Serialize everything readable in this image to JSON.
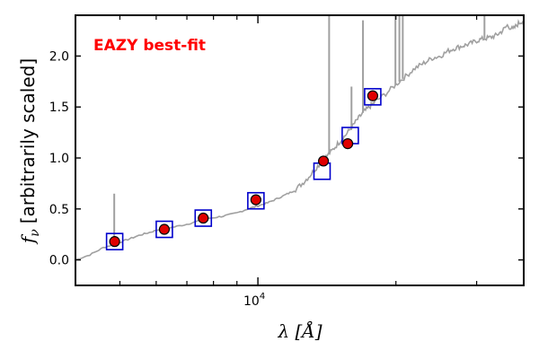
{
  "chart_data": {
    "type": "scatter",
    "annotation": "EAZY best-fit",
    "annotation_color": "#ff0000",
    "xlabel": "λ [Å]",
    "ylabel": "f_ν [arbitrarily scaled]",
    "ylabel_symbol": "f",
    "ylabel_sub": "ν",
    "ylabel_text": "[arbitrarily scaled]",
    "x_scale": "log",
    "xlim": [
      4000,
      38000
    ],
    "ylim": [
      -0.25,
      2.4
    ],
    "yticks": [
      0.0,
      0.5,
      1.0,
      1.5,
      2.0
    ],
    "ytick_labels": [
      "0.0",
      "0.5",
      "1.0",
      "1.5",
      "2.0"
    ],
    "xtick_major": [
      {
        "value": 10000,
        "base": "10",
        "exp": "4"
      }
    ],
    "xtick_minor": [
      5000,
      6000,
      7000,
      8000,
      9000,
      20000,
      30000
    ],
    "grid": false,
    "series": [
      {
        "kind": "template_spectrum",
        "color": "#a0a0a0",
        "x": [
          4000,
          4300,
          4600,
          4900,
          5200,
          5500,
          5800,
          6100,
          6500,
          7000,
          7400,
          7900,
          8400,
          9000,
          9500,
          10000,
          10500,
          11000,
          11500,
          12000,
          12500,
          13000,
          13500,
          14000,
          14500,
          15000,
          15500,
          16000,
          16500,
          17000,
          17500,
          18000,
          19000,
          20000,
          21000,
          22000,
          23000,
          24000,
          25000,
          26000,
          27000,
          28000,
          29000,
          30000,
          31000,
          32000,
          33000,
          34000,
          35000,
          36000,
          37000,
          38000
        ],
        "y": [
          0.0,
          0.05,
          0.12,
          0.16,
          0.2,
          0.24,
          0.27,
          0.3,
          0.32,
          0.35,
          0.38,
          0.41,
          0.43,
          0.46,
          0.5,
          0.53,
          0.56,
          0.6,
          0.64,
          0.68,
          0.75,
          0.83,
          0.92,
          1.0,
          1.07,
          1.15,
          1.22,
          1.3,
          1.38,
          1.45,
          1.5,
          1.55,
          1.63,
          1.72,
          1.8,
          1.88,
          1.93,
          1.98,
          2.0,
          2.05,
          2.08,
          2.1,
          2.12,
          2.15,
          2.17,
          2.18,
          2.2,
          2.24,
          2.3,
          2.26,
          2.32,
          2.35
        ],
        "emission_lines": [
          {
            "x": 4860,
            "y_top": 0.65
          },
          {
            "x": 14300,
            "y_top": 2.4
          },
          {
            "x": 16000,
            "y_top": 1.7
          },
          {
            "x": 16950,
            "y_top": 2.35
          },
          {
            "x": 19950,
            "y_top": 2.4
          },
          {
            "x": 20350,
            "y_top": 2.4
          },
          {
            "x": 20700,
            "y_top": 2.4
          },
          {
            "x": 31200,
            "y_top": 2.4
          }
        ]
      },
      {
        "kind": "model_photometry",
        "marker": "square",
        "color": "#0000cc",
        "x": [
          4870,
          6250,
          7600,
          9900,
          13800,
          15900,
          17800
        ],
        "y": [
          0.18,
          0.3,
          0.41,
          0.58,
          0.87,
          1.22,
          1.6
        ]
      },
      {
        "kind": "observed_photometry",
        "marker": "circle",
        "color": "#e00000",
        "x": [
          4870,
          6250,
          7600,
          9900,
          13900,
          15700,
          17800
        ],
        "y": [
          0.18,
          0.3,
          0.41,
          0.59,
          0.97,
          1.14,
          1.61
        ],
        "yerr": [
          0.01,
          0.01,
          0.01,
          0.01,
          0.05,
          0.02,
          0.02
        ]
      }
    ]
  }
}
